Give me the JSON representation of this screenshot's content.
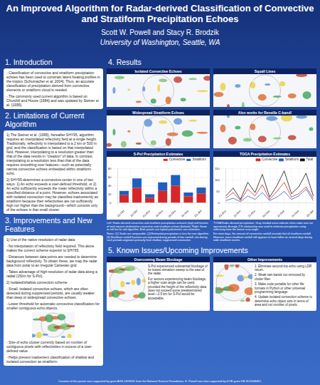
{
  "poster": {
    "title": "An Improved Algorithm for Radar-derived Classification of Convective and Stratiform Precipitation Echoes",
    "authors": "Scott W. Powell and Stacy R. Brodzik",
    "affiliation": "University of Washington, Seattle, WA",
    "sections": [
      {
        "heading": "1. Introduction",
        "paragraphs": [
          "- Classification of convective and stratiform precipitation echoes has been used to constrain latent heating profiles in the tropics (Schumacher et al. 2004). Thus, an accurate classification of precipitation derived from convective elements or stratiform cloud is needed.",
          "- The commonly used current algorithm is based on Churchill and Houze (1984) and was updated by Steiner et al. (1995)."
        ]
      },
      {
        "heading": "2. Limitations of Current Algorithm",
        "paragraphs": [
          "1) The Steiner et al. (1995), hereafter SHY95, algorithm requires an interpolated reflectivity field at a single height. Traditionally, reflectivity is interpolated to a 2 km or 500 m grid, and the classification is based on that interpolated field. However, interpolating to a resolution greater than that of the data results in \"creation\" of data. In contrast, interpolating to a resolution less than that of the data requires smoothing over features—such as potentially narrow convective echoes embedded within stratiform echo.",
          "2) SHY95 determines a convective center in one of two ways: 1) An echo exceeds a user-defined threshold, or 2) An echo sufficiently exceeds the mean reflectivity within a specified distance of a point. However, echoes associated with isolated convection may be classified inadvertently as stratiform because their reflectivities are not sufficiently high nor higher than the background—which consists only of the echoes in that small cluster."
        ]
      },
      {
        "heading": "3. Improvements and New Features",
        "paragraphs": [
          "1) Use of the native resolution of radar data",
          "- No interpolation of reflectivity field required. This alone makes the current scheme superior to SHY95.",
          "- Distances between data points are needed to determine background reflectivity. To obtain these, we map the radar data from polar to an irregular Cartesian grid.",
          "- Takes advantage of high resolution of radar data along a radial (150m for S-Pol).",
          "2) Isolated/shallow convection scheme",
          "- Small, isolated convective echoes, which are often detected during suppressed periods, are usually weaker than deep or widespread convective echoes.",
          "- Lower threshold for automatic convective classification for smaller contiguous echo objects."
        ],
        "paragraphs_after_figure": [
          "- Size of echo cluster currently based on number of contiguous pixels with reflectivities in excess of a user-defined value.",
          "- Helps prevent inadvertent classification of shallow and isolated convection as stratiform."
        ]
      }
    ],
    "results": {
      "heading": "4. Results",
      "panels": [
        "Isolated Convective Echoes",
        "Squall Lines",
        "Widespread Stratiform Echoes",
        "Also works for Reveille C-band!"
      ],
      "captions": [
        [
          "Left: Radar-derived convective and stratiform precipitation amounts (top) and fraction of total amount attributed to convective and stratiform echoes (bottom). Right: Same as left but for old algorithm. Both panels use hybrid polarimetric rain estimates.",
          "Notes: (1) Totals are comparable. (2) Estimated precipitation is less for new algorithm. (3) Stratiform rainfall fractions are improved during periods of low rainfall; rain during such periods originates primarily from shallow, suppressed convection."
        ],
        [
          "TOGA Radar-derived precipitation. Gray shaded areas indicate when radar was not operational. A single Z-R relationship was used to estimate precipitation using reflectivity from the lowest scan angle.",
          "For most days, the amount of convective rainfall exceeds that of stratiform rainfall. However, more stratiform rainfall still appears to have fallen on several days during wide stratiform events."
        ]
      ]
    },
    "known_issues": {
      "heading": "5. Known Issues/Upcoming Improvements",
      "boxes": [
        {
          "title": "Overcoming Beam Blockage",
          "items": [
            "S-Pol experienced substantial blockage of its lowest elevation sweep to the east of the radar.",
            "For sectors experiencing beam blockage, a higher scan angle can be used, provided the height of the reflectivity data does not exceed some predetermined level—2.5 km for S-Pol would be acceptable."
          ]
        },
        {
          "title": "Other Improvements",
          "items": [
            "1. Eliminate second-trip echo using LDR return.",
            "2. Weak rain bands not removed by clutter filter.",
            "3. Make code portable for other file formats in Python or other universal programming language.",
            "4. Update isolated convection scheme to determine echo object size in terms of area and not number of pixels."
          ]
        }
      ]
    },
    "footer": "Creation of this poster was supported by grant AGS-1059611 from the National Science Foundation. S. Powell was also supported by DOE grant DE-SC0008452."
  },
  "chart_data": [
    {
      "type": "bar",
      "title": "S-Pol Precipitation Estimates",
      "stacked": true,
      "grid": true,
      "legend": "top-right",
      "categories": [
        "01-Oct",
        "16-Oct",
        "01-Nov",
        "16-Nov",
        "01-Dec",
        "16-Dec",
        "01-Jan"
      ],
      "series": [
        {
          "name": "Convective",
          "color": "#d62728",
          "values": [
            18,
            35,
            12,
            28,
            40,
            15,
            22
          ]
        },
        {
          "name": "Stratiform",
          "color": "#1f5fbf",
          "values": [
            10,
            22,
            8,
            20,
            25,
            9,
            14
          ]
        }
      ],
      "ylim": [
        0,
        80
      ],
      "yticks": [
        0,
        20,
        40,
        60,
        80
      ]
    },
    {
      "type": "line",
      "title": "TOGA Precipitation Estimates",
      "grid": true,
      "legend": "top-right",
      "categories": [
        "01-Nov",
        null,
        "11-Nov",
        null,
        "21-Nov",
        null,
        "01-Dec",
        null,
        "11-Dec",
        null,
        "21-Dec",
        null,
        "01-Jan"
      ],
      "series": [
        {
          "name": "Convective",
          "color": "#d62728",
          "values": [
            20,
            45,
            10,
            60,
            30,
            80,
            15,
            50,
            90,
            25,
            40,
            70,
            20
          ]
        },
        {
          "name": "Stratiform",
          "color": "#1f5fbf",
          "values": [
            10,
            20,
            5,
            30,
            15,
            45,
            10,
            25,
            50,
            15,
            30,
            60,
            10
          ]
        },
        {
          "name": "Total",
          "color": "#111111",
          "values": [
            30,
            65,
            15,
            90,
            45,
            125,
            25,
            75,
            140,
            40,
            70,
            130,
            30
          ]
        }
      ],
      "ylim": [
        0,
        150
      ],
      "yticks": [
        0,
        50,
        100,
        150
      ]
    }
  ]
}
